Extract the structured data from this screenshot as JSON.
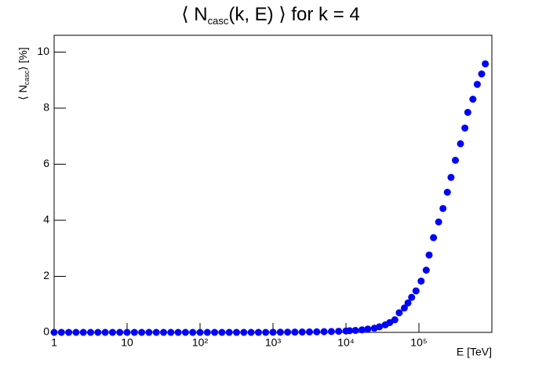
{
  "chart_data": {
    "type": "scatter",
    "title": {
      "prefix": "⟨ N",
      "subscript": "casc",
      "suffix": "(k, E) ⟩ for k = 4"
    },
    "x_label": "E [TeV]",
    "y_label": {
      "prefix": "⟨ N",
      "subscript": "casc",
      "suffix": "⟩ [%]"
    },
    "log_x": true,
    "color": "#0000ff",
    "xlim": [
      1,
      1000000
    ],
    "ylim": [
      0,
      10.6
    ],
    "xticks": [
      1,
      10,
      {
        "value": 100,
        "label": "10²"
      },
      {
        "value": 1000,
        "label": "10³"
      },
      {
        "value": 10000,
        "label": "10⁴"
      },
      {
        "value": 100000,
        "label": "10⁵"
      }
    ],
    "yticks": [
      0,
      2,
      4,
      6,
      8,
      10
    ],
    "series": [
      {
        "x": [
          1,
          1.259,
          1.585,
          1.995,
          2.512,
          3.162,
          3.981,
          5.012,
          6.31,
          7.943,
          10,
          12.59,
          15.85,
          19.95,
          25.12,
          31.62,
          39.81,
          50.12,
          63.1,
          79.43,
          100,
          125.9,
          158.5,
          199.5,
          251.2,
          316.2,
          398.1,
          501.2,
          631,
          794.3,
          1000,
          1259,
          1585,
          1995,
          2512,
          3162,
          3981,
          5012,
          6310,
          7943,
          10000,
          11220,
          13490,
          16600,
          19950,
          24550,
          28840,
          34670,
          39810,
          46770,
          53700,
          63100,
          70800,
          79430,
          91200,
          107200,
          125900,
          138000,
          158500,
          186200,
          213800,
          245500,
          275400,
          316200,
          371500,
          426600,
          467700,
          549500,
          631000,
          724400,
          812800
        ],
        "values": [
          0,
          0,
          0,
          0,
          0,
          0,
          0,
          0,
          0,
          0,
          0,
          0,
          0,
          0,
          0,
          0,
          0,
          0,
          0,
          0,
          0,
          0,
          0,
          0,
          0,
          0,
          0,
          0,
          0,
          0,
          0.005,
          0.006,
          0.008,
          0.01,
          0.013,
          0.016,
          0.02,
          0.025,
          0.03,
          0.04,
          0.05,
          0.06,
          0.07,
          0.09,
          0.12,
          0.15,
          0.2,
          0.27,
          0.35,
          0.45,
          0.7,
          0.87,
          1.05,
          1.25,
          1.48,
          1.83,
          2.22,
          2.76,
          3.38,
          3.94,
          4.42,
          5.0,
          5.53,
          6.14,
          6.73,
          7.29,
          7.85,
          8.32,
          8.85,
          9.22,
          9.58
        ]
      }
    ]
  }
}
